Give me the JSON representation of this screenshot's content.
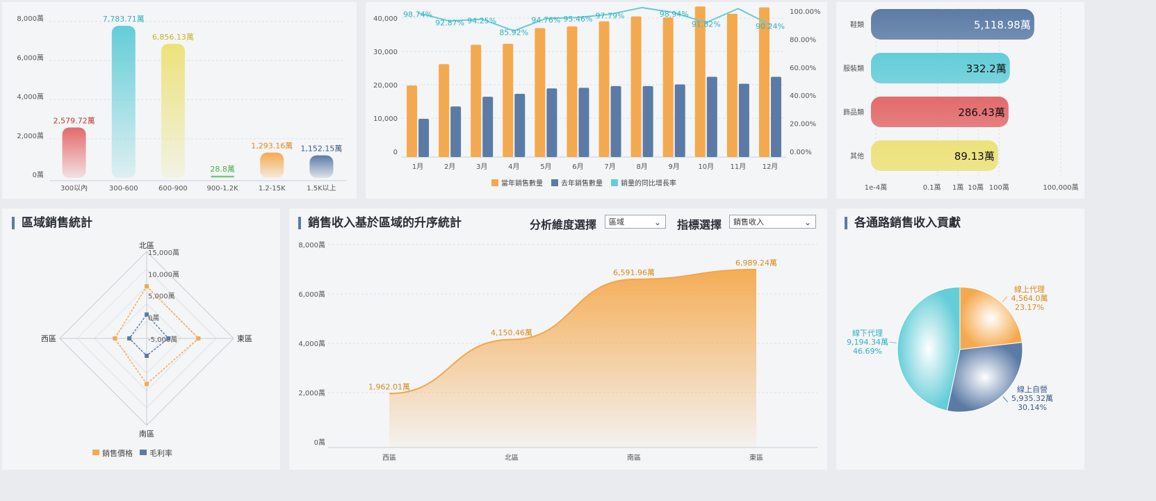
{
  "colors": {
    "orange": "#f5a94e",
    "blue": "#5b7ba6",
    "teal": "#63cdd8",
    "red": "#e36a6a",
    "yellow": "#ece27a",
    "green": "#4caf50",
    "grid": "#dde1e6",
    "axisText": "#555555"
  },
  "price_band_chart": {
    "type": "bar",
    "categories": [
      "300以內",
      "300-600",
      "600-900",
      "900-1.2K",
      "1.2-15K",
      "1.5K以上"
    ],
    "values": [
      2579.72,
      7783.71,
      6856.13,
      28.8,
      1293.16,
      1152.15
    ],
    "value_labels": [
      "2,579.72萬",
      "7,783.71萬",
      "6,856.13萬",
      "28.8萬",
      "1,293.16萬",
      "1,152.15萬"
    ],
    "label_colors": [
      "#c0392b",
      "#2fb3c0",
      "#c9b52a",
      "#4caf50",
      "#e08a1e",
      "#3d5a86"
    ],
    "bar_colors": [
      "#e36a6a",
      "#63cdd8",
      "#ece27a",
      "#4caf50",
      "#f5a94e",
      "#5b7ba6"
    ],
    "y_ticks": [
      "0萬",
      "2,000萬",
      "4,000萬",
      "6,000萬",
      "8,000萬"
    ],
    "ylim": [
      0,
      8000
    ]
  },
  "monthly_chart": {
    "type": "bar",
    "categories": [
      "1月",
      "2月",
      "3月",
      "4月",
      "5月",
      "6月",
      "7月",
      "8月",
      "9月",
      "10月",
      "11月",
      "12月"
    ],
    "series": [
      {
        "name": "當年銷售數量",
        "values": [
          19800,
          26200,
          32000,
          32300,
          37000,
          37500,
          39000,
          40500,
          40200,
          43500,
          41300,
          43200
        ]
      },
      {
        "name": "去年銷售數量",
        "values": [
          9800,
          13500,
          16400,
          17300,
          18900,
          19100,
          19600,
          19600,
          20100,
          22400,
          20300,
          22400
        ]
      }
    ],
    "growth": {
      "name": "銷量的同比增長率",
      "values": [
        98.74,
        92.87,
        94.25,
        85.92,
        94.76,
        95.46,
        97.79,
        102.5,
        98.94,
        91.82,
        101.8,
        90.24
      ],
      "labels": [
        "98.74%",
        "92.87%",
        "94.25%",
        "85.92%",
        "94.76%",
        "95.46%",
        "97.79%",
        "",
        "98.94%",
        "91.82%",
        "",
        "90.24%"
      ]
    },
    "y_left_ticks": [
      "0",
      "10,000",
      "20,000",
      "30,000",
      "40,000"
    ],
    "y_right_ticks": [
      "0.00%",
      "20.00%",
      "40.00%",
      "60.00%",
      "80.00%",
      "100.00%"
    ],
    "ylim_left": [
      0,
      40000
    ],
    "ylim_right": [
      0,
      100
    ]
  },
  "category_chart": {
    "type": "bar",
    "orientation": "horizontal",
    "scale": "log",
    "categories": [
      "鞋類",
      "服裝類",
      "飾品類",
      "其他"
    ],
    "values": [
      5118.98,
      332.2,
      286.43,
      89.13
    ],
    "value_labels": [
      "5,118.98萬",
      "332.2萬",
      "286.43萬",
      "89.13萬"
    ],
    "bar_colors": [
      "#5b7ba6",
      "#63cdd8",
      "#e36a6a",
      "#ece27a"
    ],
    "x_ticks": [
      {
        "v": 0.0001,
        "label": "1e-4萬"
      },
      {
        "v": 0.1,
        "label": "0.1萬"
      },
      {
        "v": 1,
        "label": "1萬"
      },
      {
        "v": 10,
        "label": "10萬"
      },
      {
        "v": 100,
        "label": "100萬"
      },
      {
        "v": 100000,
        "label": "100,000萬"
      }
    ]
  },
  "region_stats": {
    "title": "區域銷售統計",
    "chart": {
      "type": "radar",
      "axes": [
        "北區",
        "東區",
        "南區",
        "西區"
      ],
      "ring_labels": [
        "-5,000萬",
        "0萬",
        "5,000萬",
        "10,000萬",
        "15,000萬"
      ],
      "range": [
        -5000,
        15000
      ],
      "series": [
        {
          "name": "銷售價格",
          "values": [
            7000,
            6900,
            5500,
            2300
          ]
        },
        {
          "name": "毛利率",
          "values": [
            500,
            0,
            -1000,
            -1000
          ]
        }
      ]
    }
  },
  "region_revenue": {
    "title": "銷售收入基於區域的升序統計",
    "dimension_label": "分析維度選擇",
    "dimension_value": "區域",
    "metric_label": "指標選擇",
    "metric_value": "銷售收入",
    "chart": {
      "type": "area",
      "categories": [
        "西區",
        "北區",
        "南區",
        "東區"
      ],
      "values": [
        1962.01,
        4150.46,
        6591.96,
        6989.24
      ],
      "value_labels": [
        "1,962.01萬",
        "4,150.46萬",
        "6,591.96萬",
        "6,989.24萬"
      ],
      "y_ticks": [
        "0萬",
        "2,000萬",
        "4,000萬",
        "6,000萬",
        "8,000萬"
      ],
      "ylim": [
        0,
        8000
      ]
    }
  },
  "channel_revenue": {
    "title": "各通路銷售收入貢獻",
    "chart": {
      "type": "pie",
      "slices": [
        {
          "name": "線上代理",
          "value_label": "4,564.0萬",
          "pct_label": "23.17%",
          "value": 4564.0,
          "color": "#f5a94e"
        },
        {
          "name": "線上自營",
          "value_label": "5,935.32萬",
          "pct_label": "30.14%",
          "value": 5935.32,
          "color": "#5b7ba6"
        },
        {
          "name": "線下代理",
          "value_label": "9,194.34萬",
          "pct_label": "46.69%",
          "value": 9194.34,
          "color": "#63cdd8"
        }
      ]
    }
  }
}
